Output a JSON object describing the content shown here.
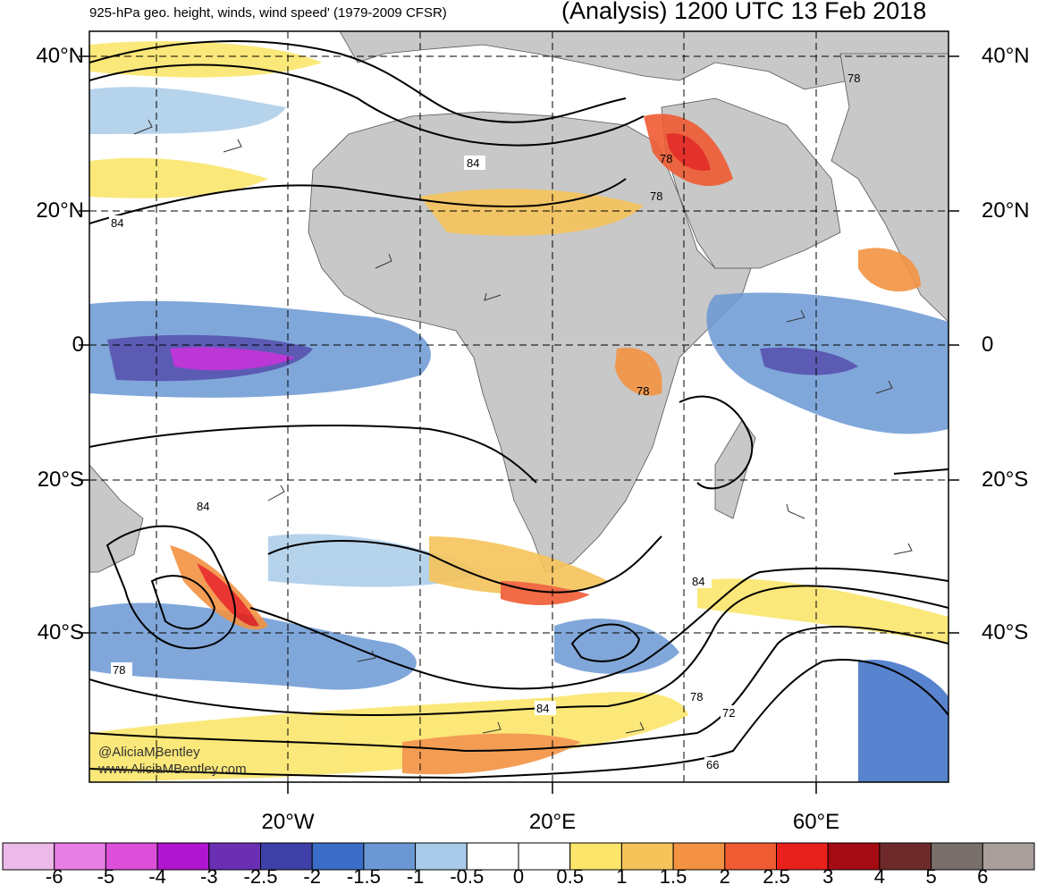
{
  "header": {
    "subtitle": "925-hPa geo. height, winds, wind speed' (1979-2009 CFSR)",
    "title": "(Analysis) 1200 UTC 13 Feb 2018"
  },
  "lat_labels": [
    "40°N",
    "20°N",
    "0",
    "20°S",
    "40°S"
  ],
  "lon_labels": [
    "20°W",
    "20°E",
    "60°E"
  ],
  "contour_labels": [
    "84",
    "84",
    "84",
    "84",
    "84",
    "78",
    "78",
    "78",
    "78",
    "78",
    "72",
    "66",
    "78"
  ],
  "credit": {
    "twitter": "@AliciaMBentley",
    "website": "www.AliciaMBentley.com"
  },
  "colorbar": {
    "labels": [
      "-6",
      "-5",
      "-4",
      "-3",
      "-2.5",
      "-2",
      "-1.5",
      "-1",
      "-0.5",
      "0",
      "0.5",
      "1",
      "1.5",
      "2",
      "2.5",
      "3",
      "4",
      "5",
      "6"
    ],
    "colors": [
      "#ecb9e8",
      "#e67ee6",
      "#db4fd9",
      "#b015d0",
      "#6b2fb3",
      "#3f3fa8",
      "#3b6dc6",
      "#6b98d4",
      "#a9cbe9",
      "#ffffff",
      "#ffffff",
      "#fbe66b",
      "#f5c35a",
      "#f39242",
      "#ef5c32",
      "#e8211c",
      "#a50b12",
      "#6e2a2a",
      "#786e6a",
      "#a89f9c"
    ]
  },
  "map_colors": {
    "land": "#c8c8c8",
    "contour": "#000000",
    "grid": "#000000"
  }
}
